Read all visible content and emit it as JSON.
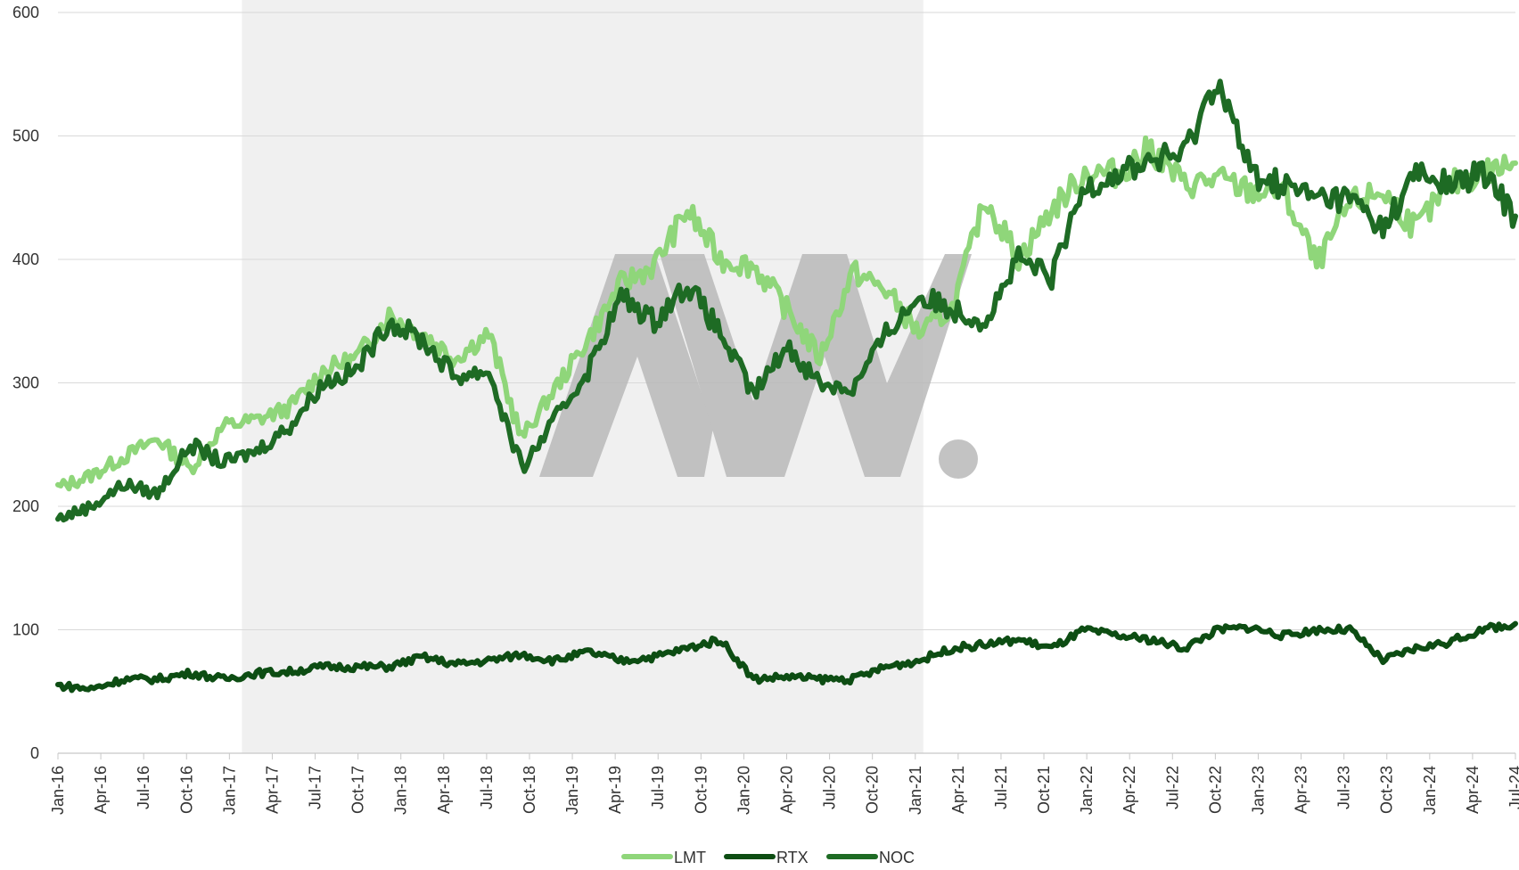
{
  "chart_data": {
    "type": "line",
    "title": "",
    "xlabel": "",
    "ylabel": "",
    "ylim": [
      0,
      600
    ],
    "yticks": [
      0,
      100,
      200,
      300,
      400,
      500,
      600
    ],
    "x_tick_labels": [
      "Jan-16",
      "Apr-16",
      "Jul-16",
      "Oct-16",
      "Jan-17",
      "Apr-17",
      "Jul-17",
      "Oct-17",
      "Jan-18",
      "Apr-18",
      "Jul-18",
      "Oct-18",
      "Jan-19",
      "Apr-19",
      "Jul-19",
      "Oct-19",
      "Jan-20",
      "Apr-20",
      "Jul-20",
      "Oct-20",
      "Jan-21",
      "Apr-21",
      "Jul-21",
      "Oct-21",
      "Jan-22",
      "Apr-22",
      "Jul-22",
      "Oct-22",
      "Jan-23",
      "Apr-23",
      "Jul-23",
      "Oct-23",
      "Jan-24",
      "Apr-24",
      "Jul-24"
    ],
    "shaded_period": {
      "start": "Jan-17",
      "end": "Jan-21"
    },
    "legend_position": "bottom",
    "series": [
      {
        "name": "LMT",
        "color": "#8fd67a",
        "values": [
          215,
          225,
          240,
          255,
          230,
          265,
          270,
          280,
          310,
          320,
          355,
          340,
          320,
          340,
          255,
          295,
          335,
          380,
          395,
          440,
          400,
          395,
          360,
          320,
          390,
          375,
          340,
          360,
          450,
          400,
          440,
          470,
          470,
          490,
          460,
          465,
          455,
          455,
          395,
          445,
          455,
          425,
          460,
          470,
          478
        ]
      },
      {
        "name": "RTX",
        "color": "#0d4d13",
        "values": [
          55,
          52,
          60,
          60,
          65,
          60,
          65,
          66,
          70,
          70,
          70,
          78,
          72,
          75,
          80,
          75,
          82,
          75,
          78,
          85,
          92,
          60,
          62,
          60,
          60,
          70,
          75,
          85,
          88,
          92,
          85,
          100,
          95,
          92,
          85,
          100,
          102,
          95,
          100,
          100,
          75,
          85,
          90,
          100,
          105
        ]
      },
      {
        "name": "NOC",
        "color": "#1e6b24",
        "values": [
          190,
          200,
          218,
          210,
          250,
          235,
          245,
          265,
          300,
          310,
          350,
          335,
          305,
          310,
          230,
          270,
          310,
          370,
          350,
          380,
          340,
          290,
          330,
          300,
          295,
          340,
          370,
          360,
          350,
          400,
          385,
          460,
          470,
          480,
          485,
          548,
          470,
          460,
          450,
          450,
          425,
          470,
          460,
          470,
          435
        ]
      }
    ]
  },
  "legend": {
    "items": [
      {
        "label": "LMT",
        "color": "#8fd67a"
      },
      {
        "label": "RTX",
        "color": "#0d4d13"
      },
      {
        "label": "NOC",
        "color": "#1e6b24"
      }
    ]
  }
}
